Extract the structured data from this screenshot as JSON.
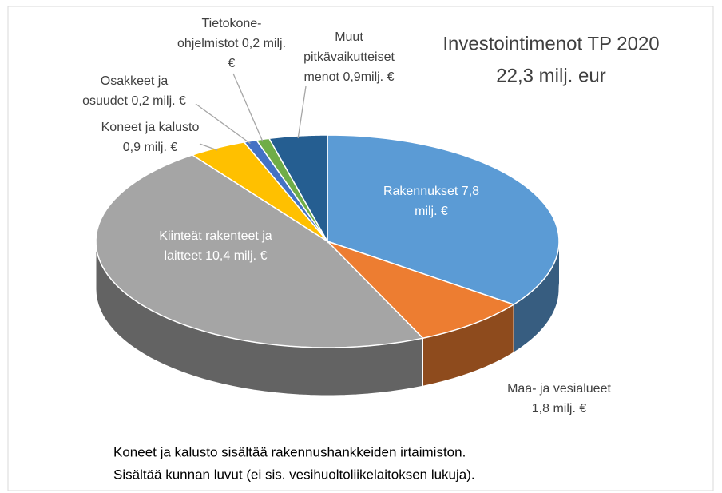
{
  "chart_data": {
    "type": "pie3d",
    "title": [
      "Investointimenot TP 2020",
      "22,3 milj. eur"
    ],
    "values": [
      7.8,
      1.8,
      10.4,
      0.9,
      0.2,
      0.2,
      0.9
    ],
    "value_labels": [
      [
        "Rakennukset 7,8",
        "milj. €"
      ],
      [
        "Maa- ja vesialueet",
        "1,8 milj. €"
      ],
      [
        "Kiinteät rakenteet ja",
        "laitteet  10,4 milj. €"
      ],
      [
        "Koneet ja kalusto",
        "0,9 milj. €"
      ],
      [
        "Osakkeet ja",
        "osuudet 0,2 milj. €"
      ],
      [
        "Tietokone-",
        "ohjelmistot 0,2 milj.",
        "€"
      ],
      [
        "Muut",
        "pitkävaikutteiset",
        "menot 0,9milj. €"
      ]
    ],
    "colors": [
      "#5b9bd5",
      "#ed7d31",
      "#a5a5a5",
      "#ffc000",
      "#4472c4",
      "#70ad47",
      "#255e91"
    ],
    "footnote": [
      "Koneet ja kalusto sisältää rakennushankkeiden irtaimiston.",
      "Sisältää kunnan luvut (ei sis. vesihuoltoliikelaitoksen lukuja)."
    ]
  }
}
